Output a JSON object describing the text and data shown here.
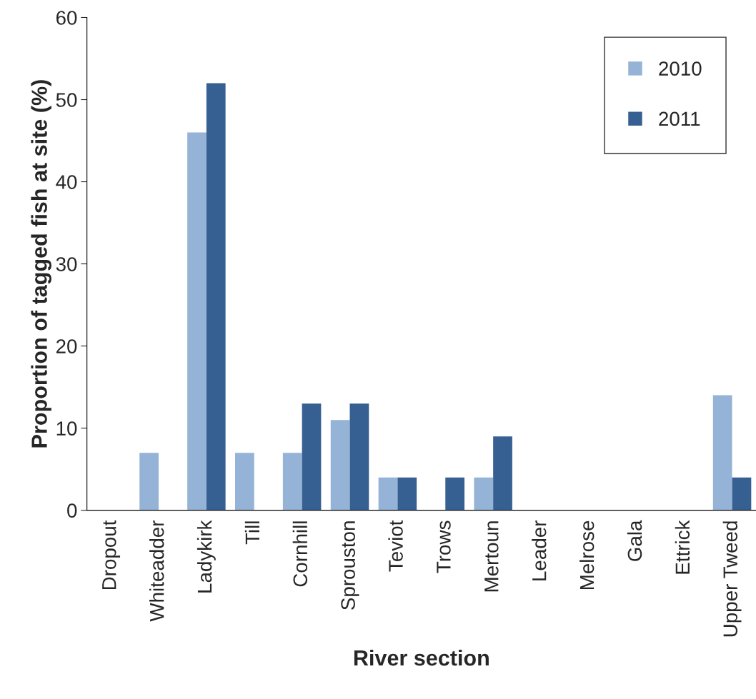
{
  "chart_data": {
    "type": "bar",
    "xlabel": "River section",
    "ylabel": "Proportion of tagged fish at site (%)",
    "categories": [
      "Dropout",
      "Whiteadder",
      "Ladykirk",
      "Till",
      "Cornhill",
      "Sprouston",
      "Teviot",
      "Trows",
      "Mertoun",
      "Leader",
      "Melrose",
      "Gala",
      "Ettrick",
      "Upper Tweed"
    ],
    "series": [
      {
        "name": "2010",
        "color": "#95b3d7",
        "values": [
          0,
          7,
          46,
          7,
          7,
          11,
          4,
          0,
          4,
          0,
          0,
          0,
          0,
          14
        ]
      },
      {
        "name": "2011",
        "color": "#376092",
        "values": [
          0,
          0,
          52,
          0,
          13,
          13,
          4,
          4,
          9,
          0,
          0,
          0,
          0,
          4
        ]
      }
    ],
    "ylim": [
      0,
      60
    ],
    "yticks": [
      0,
      10,
      20,
      30,
      40,
      50,
      60
    ],
    "grid": false,
    "legend": "top right"
  }
}
